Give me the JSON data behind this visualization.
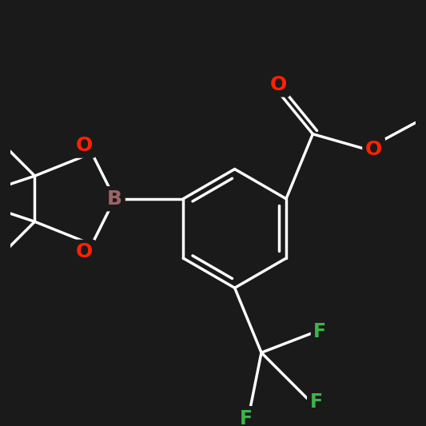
{
  "background_color": "#1a1a1a",
  "bond_color": "#ffffff",
  "bond_width": 2.5,
  "atom_colors": {
    "O": "#ff2200",
    "B": "#9b6464",
    "F": "#3cb44b",
    "C": "#ffffff"
  },
  "figsize": [
    5.33,
    5.33
  ],
  "dpi": 100
}
